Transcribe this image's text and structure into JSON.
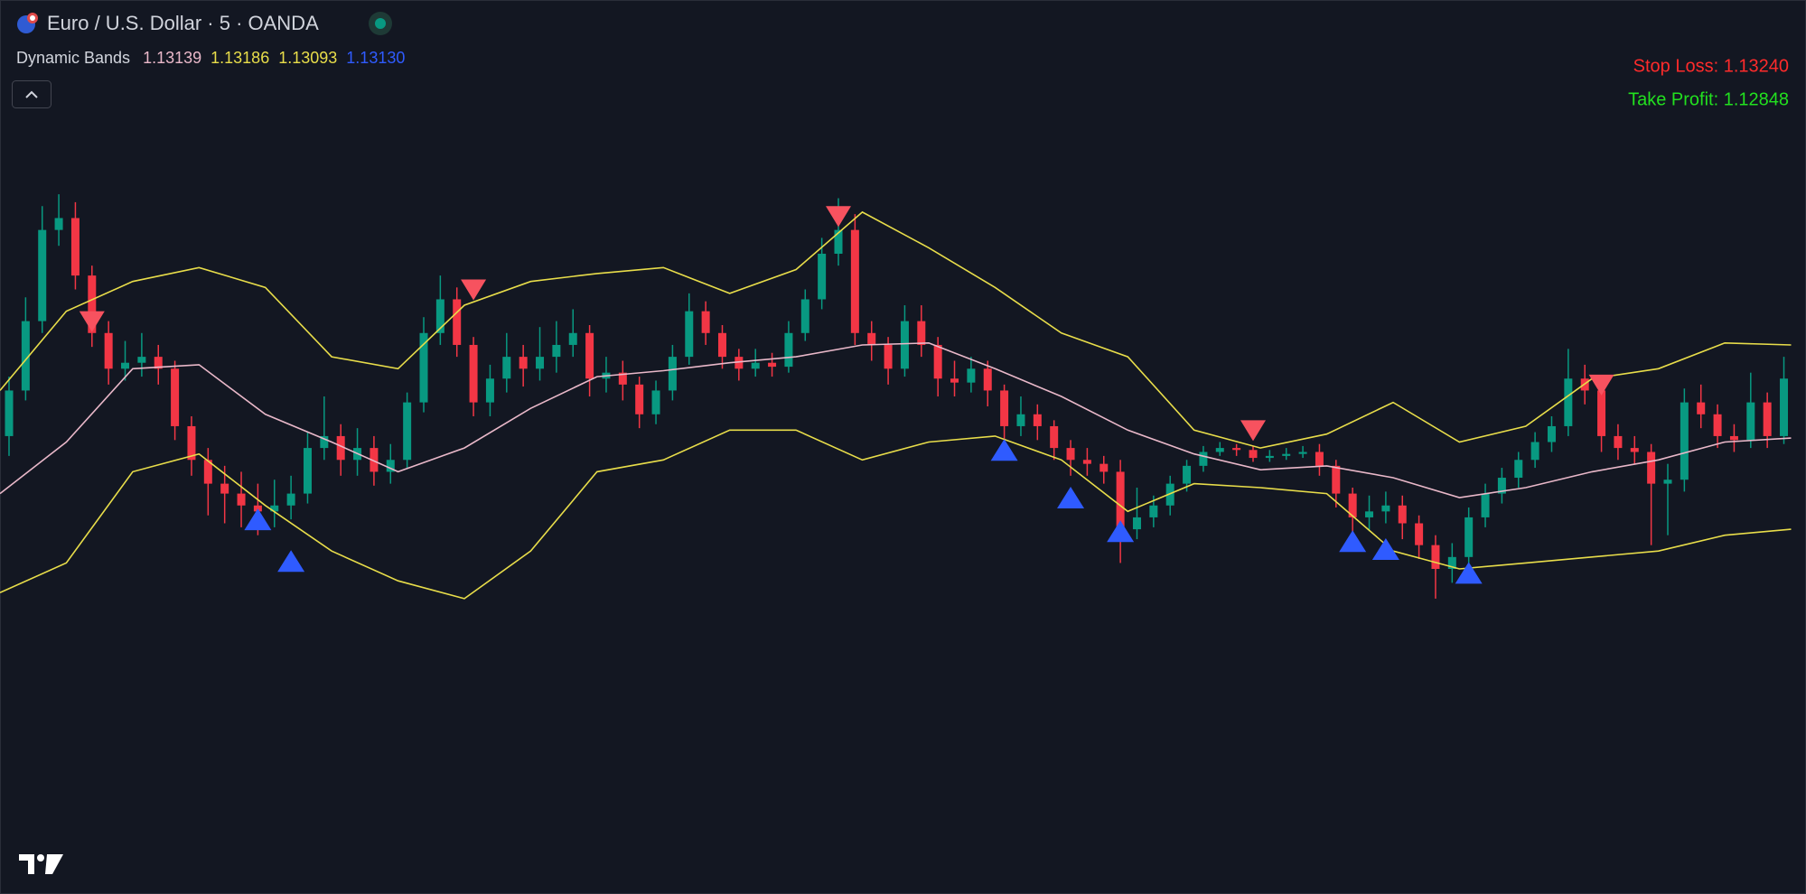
{
  "chart_data": {
    "type": "candlestick",
    "title": "Euro / U.S. Dollar · 5 · OANDA",
    "indicator": {
      "name": "Dynamic Bands",
      "values": [
        "1.13139",
        "1.13186",
        "1.13093",
        "1.13130"
      ],
      "colors": [
        "#e9b8c9",
        "#e8dd4a",
        "#e8dd4a",
        "#2f5bff"
      ]
    },
    "stop_loss": "Stop Loss: 1.13240",
    "take_profit": "Take Profit: 1.12848",
    "stop_loss_color": "#ff2b2b",
    "take_profit_color": "#22e01f",
    "ylim": [
      1.12909,
      1.1336
    ],
    "up_color": "#089981",
    "down_color": "#f23645",
    "candles": {
      "open": [
        1.1314,
        1.13163,
        1.13198,
        1.13244,
        1.1325,
        1.13221,
        1.13192,
        1.13174,
        1.13177,
        1.1318,
        1.13174,
        1.13145,
        1.13128,
        1.13116,
        1.13111,
        1.13105,
        1.13102,
        1.13105,
        1.13111,
        1.13134,
        1.1314,
        1.13128,
        1.13134,
        1.13122,
        1.13128,
        1.13157,
        1.13192,
        1.13209,
        1.13186,
        1.13157,
        1.13169,
        1.1318,
        1.13174,
        1.1318,
        1.13186,
        1.13192,
        1.13169,
        1.13172,
        1.13166,
        1.13151,
        1.13163,
        1.1318,
        1.13203,
        1.13192,
        1.1318,
        1.13174,
        1.13177,
        1.13175,
        1.13192,
        1.13209,
        1.13232,
        1.13244,
        1.13192,
        1.13186,
        1.13174,
        1.13198,
        1.13186,
        1.13169,
        1.13167,
        1.13174,
        1.13163,
        1.13145,
        1.13151,
        1.13145,
        1.13134,
        1.13128,
        1.13126,
        1.13122,
        1.13093,
        1.13099,
        1.13105,
        1.13116,
        1.13125,
        1.13132,
        1.13134,
        1.13133,
        1.13129,
        1.1313,
        1.13131,
        1.13132,
        1.13125,
        1.13111,
        1.13099,
        1.13102,
        1.13105,
        1.13096,
        1.13085,
        1.13073,
        1.13079,
        1.13099,
        1.13111,
        1.13119,
        1.13128,
        1.13137,
        1.13145,
        1.13169,
        1.13163,
        1.1314,
        1.13134,
        1.13132,
        1.13116,
        1.13118,
        1.13157,
        1.13151,
        1.1314,
        1.13138,
        1.13157,
        1.1314
      ],
      "high": [
        1.1317,
        1.1321,
        1.13256,
        1.13262,
        1.13258,
        1.13226,
        1.13198,
        1.13188,
        1.13192,
        1.13186,
        1.13178,
        1.1315,
        1.13134,
        1.13125,
        1.13122,
        1.13116,
        1.13118,
        1.1312,
        1.13142,
        1.1316,
        1.13146,
        1.13144,
        1.1314,
        1.13136,
        1.13162,
        1.132,
        1.13221,
        1.13215,
        1.1319,
        1.13176,
        1.13192,
        1.13186,
        1.13195,
        1.13198,
        1.13204,
        1.13196,
        1.1318,
        1.13178,
        1.1317,
        1.13168,
        1.13186,
        1.13212,
        1.13208,
        1.13196,
        1.13184,
        1.13184,
        1.13182,
        1.13198,
        1.13214,
        1.1324,
        1.1326,
        1.13252,
        1.13198,
        1.1319,
        1.13206,
        1.13206,
        1.1319,
        1.13178,
        1.1318,
        1.13178,
        1.13166,
        1.1316,
        1.13156,
        1.13148,
        1.13138,
        1.13134,
        1.1313,
        1.13128,
        1.13114,
        1.1311,
        1.1312,
        1.13128,
        1.13135,
        1.13137,
        1.13136,
        1.13135,
        1.13133,
        1.13134,
        1.13135,
        1.13136,
        1.13128,
        1.13114,
        1.1311,
        1.13112,
        1.1311,
        1.131,
        1.1309,
        1.13086,
        1.13104,
        1.13116,
        1.13124,
        1.13132,
        1.13142,
        1.1315,
        1.13184,
        1.13176,
        1.13168,
        1.13146,
        1.1314,
        1.13136,
        1.13126,
        1.13164,
        1.13166,
        1.13156,
        1.13146,
        1.13172,
        1.13162,
        1.1318
      ],
      "low": [
        1.1313,
        1.13158,
        1.13192,
        1.13236,
        1.13214,
        1.13185,
        1.13166,
        1.13168,
        1.1317,
        1.13166,
        1.13138,
        1.1312,
        1.131,
        1.13096,
        1.13094,
        1.1309,
        1.13094,
        1.13098,
        1.13106,
        1.13128,
        1.1312,
        1.1312,
        1.13115,
        1.13116,
        1.13124,
        1.13152,
        1.13186,
        1.1318,
        1.1315,
        1.1315,
        1.13162,
        1.13165,
        1.13168,
        1.13172,
        1.1318,
        1.1316,
        1.13162,
        1.13158,
        1.13144,
        1.13146,
        1.13158,
        1.13176,
        1.13186,
        1.13174,
        1.13168,
        1.1317,
        1.1317,
        1.13172,
        1.13188,
        1.13204,
        1.13226,
        1.13186,
        1.13178,
        1.13166,
        1.1317,
        1.1318,
        1.1316,
        1.1316,
        1.13162,
        1.13155,
        1.13138,
        1.1314,
        1.13138,
        1.13128,
        1.1312,
        1.1312,
        1.13116,
        1.13076,
        1.13088,
        1.13094,
        1.131,
        1.13112,
        1.13122,
        1.1313,
        1.1313,
        1.13127,
        1.13127,
        1.13128,
        1.13129,
        1.1312,
        1.13104,
        1.1309,
        1.13092,
        1.13096,
        1.13088,
        1.13078,
        1.13058,
        1.13066,
        1.13074,
        1.13094,
        1.13106,
        1.13114,
        1.13124,
        1.13132,
        1.1314,
        1.13156,
        1.13132,
        1.13128,
        1.13126,
        1.13085,
        1.1309,
        1.13112,
        1.13144,
        1.13134,
        1.13132,
        1.13134,
        1.13134,
        1.13136
      ],
      "close": [
        1.13163,
        1.13198,
        1.13244,
        1.1325,
        1.13221,
        1.13192,
        1.13174,
        1.13177,
        1.1318,
        1.13174,
        1.13145,
        1.13128,
        1.13116,
        1.13111,
        1.13105,
        1.13102,
        1.13105,
        1.13111,
        1.13134,
        1.1314,
        1.13128,
        1.13134,
        1.13122,
        1.13128,
        1.13157,
        1.13192,
        1.13209,
        1.13186,
        1.13157,
        1.13169,
        1.1318,
        1.13174,
        1.1318,
        1.13186,
        1.13192,
        1.13169,
        1.13172,
        1.13166,
        1.13151,
        1.13163,
        1.1318,
        1.13203,
        1.13192,
        1.1318,
        1.13174,
        1.13177,
        1.13175,
        1.13192,
        1.13209,
        1.13232,
        1.13244,
        1.13192,
        1.13186,
        1.13174,
        1.13198,
        1.13186,
        1.13169,
        1.13167,
        1.13174,
        1.13163,
        1.13145,
        1.13151,
        1.13145,
        1.13134,
        1.13128,
        1.13126,
        1.13122,
        1.13093,
        1.13099,
        1.13105,
        1.13116,
        1.13125,
        1.13132,
        1.13134,
        1.13133,
        1.13129,
        1.1313,
        1.13131,
        1.13132,
        1.13125,
        1.13111,
        1.13099,
        1.13102,
        1.13105,
        1.13096,
        1.13085,
        1.13073,
        1.13079,
        1.13099,
        1.13111,
        1.13119,
        1.13128,
        1.13137,
        1.13145,
        1.13169,
        1.13163,
        1.1314,
        1.13134,
        1.13132,
        1.13116,
        1.13118,
        1.13157,
        1.13151,
        1.1314,
        1.13138,
        1.13157,
        1.1314,
        1.13169
      ]
    },
    "bands": {
      "upper": [
        1.13163,
        1.13203,
        1.13218,
        1.13225,
        1.13215,
        1.1318,
        1.13174,
        1.13206,
        1.13218,
        1.13222,
        1.13225,
        1.13212,
        1.13224,
        1.13253,
        1.13235,
        1.13215,
        1.13192,
        1.1318,
        1.13143,
        1.13134,
        1.13141,
        1.13157,
        1.13137,
        1.13145,
        1.13169,
        1.13174,
        1.13187,
        1.13186
      ],
      "middle": [
        1.13111,
        1.13137,
        1.13174,
        1.13176,
        1.13151,
        1.13137,
        1.13122,
        1.13134,
        1.13154,
        1.1317,
        1.13173,
        1.13177,
        1.1318,
        1.13186,
        1.13187,
        1.13174,
        1.1316,
        1.13143,
        1.13131,
        1.13123,
        1.13125,
        1.13119,
        1.13109,
        1.13114,
        1.13122,
        1.13128,
        1.13137,
        1.13139
      ],
      "lower": [
        1.13061,
        1.13076,
        1.13122,
        1.13131,
        1.13105,
        1.13082,
        1.13067,
        1.13058,
        1.13082,
        1.13122,
        1.13128,
        1.13143,
        1.13143,
        1.13128,
        1.13137,
        1.1314,
        1.13128,
        1.13102,
        1.13116,
        1.13114,
        1.13111,
        1.13082,
        1.13073,
        1.13076,
        1.13079,
        1.13082,
        1.1309,
        1.13093
      ],
      "band_color": "#e8dd4a",
      "middle_color": "#e9b8c9"
    },
    "sell_signals": {
      "x": [
        5,
        28,
        50,
        75,
        96
      ],
      "values": [
        1.13198,
        1.13214,
        1.13251,
        1.13143,
        1.13166
      ],
      "color": "#f7525f"
    },
    "buy_signals": {
      "x": [
        15,
        17,
        60,
        64,
        67,
        81,
        83,
        88
      ],
      "values": [
        1.13098,
        1.13077,
        1.13133,
        1.13109,
        1.13092,
        1.13087,
        1.13083,
        1.13071
      ],
      "color": "#2f5bff"
    }
  }
}
